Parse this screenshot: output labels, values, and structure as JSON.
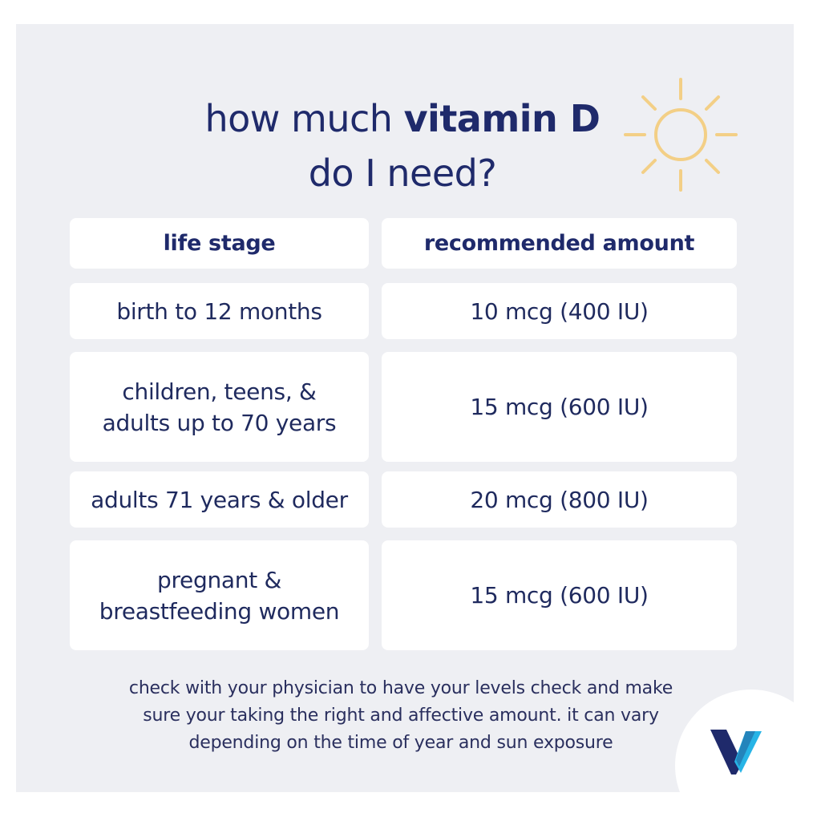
{
  "title": {
    "line1_prefix": "how much ",
    "line1_bold": "vitamin D",
    "line2": "do I need?"
  },
  "icons": {
    "sun": "sun-icon",
    "logo": "v-logo-icon"
  },
  "colors": {
    "panel_background": "#eeeff3",
    "cell_background": "#ffffff",
    "text_navy": "#1f2a6b",
    "sun_yellow": "#f3cf86",
    "logo_navy": "#1f2a6b",
    "logo_cyan": "#27b4e6"
  },
  "table": {
    "headers": [
      "life stage",
      "recommended amount"
    ],
    "rows": [
      {
        "stage": [
          "birth to 12 months"
        ],
        "amount": "10 mcg (400 IU)"
      },
      {
        "stage": [
          "children, teens, &",
          "adults up to 70 years"
        ],
        "amount": "15 mcg (600 IU)"
      },
      {
        "stage": [
          "adults 71 years & older"
        ],
        "amount": "20 mcg (800 IU)"
      },
      {
        "stage": [
          "pregnant &",
          "breastfeeding women"
        ],
        "amount": "15 mcg (600 IU)"
      }
    ]
  },
  "note": {
    "line1": "check with your physician to have your levels check and make",
    "line2": "sure your taking the right and affective amount. it can vary",
    "line3": "depending on the time of year and sun exposure"
  }
}
